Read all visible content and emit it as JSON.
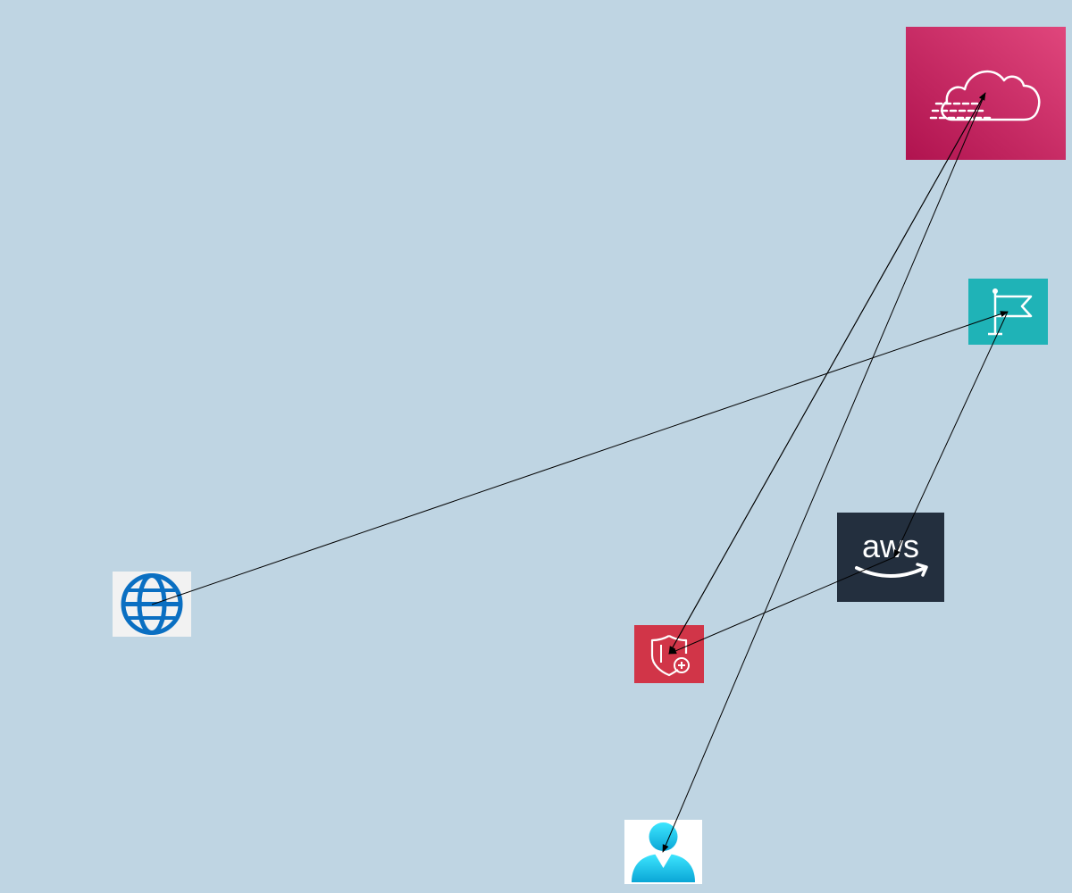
{
  "diagram": {
    "nodes": [
      {
        "id": "cloudfront",
        "icon": "cloud-streaming-icon",
        "color": "#c7225d"
      },
      {
        "id": "flag",
        "icon": "flag-icon",
        "color": "#1fb3b7"
      },
      {
        "id": "aws",
        "icon": "aws-logo-icon",
        "color": "#232f3e",
        "logo_text": "aws"
      },
      {
        "id": "shield",
        "icon": "shield-plus-icon",
        "color": "#d13548"
      },
      {
        "id": "globe",
        "icon": "globe-icon",
        "color": "#0a6fc2"
      },
      {
        "id": "user",
        "icon": "user-icon",
        "color": "#19c3e6"
      }
    ],
    "edges": [
      {
        "from": "globe",
        "to": "flag"
      },
      {
        "from": "flag",
        "to": "aws"
      },
      {
        "from": "aws",
        "to": "shield"
      },
      {
        "from": "shield",
        "to": "cloudfront"
      },
      {
        "from": "cloudfront",
        "to": "shield"
      },
      {
        "from": "cloudfront",
        "to": "user"
      }
    ],
    "edge_color": "#000000",
    "background": "#bfd5e3"
  }
}
